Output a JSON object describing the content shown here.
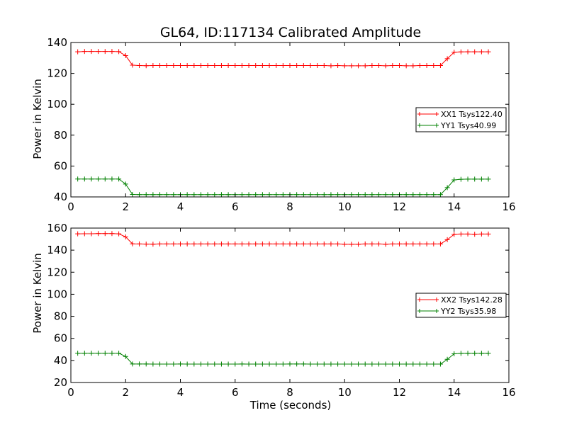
{
  "chart_data": [
    {
      "type": "line",
      "title": "GL64, ID:117134 Calibrated Amplitude",
      "xlabel": "",
      "ylabel": "Power in Kelvin",
      "xlim": [
        0,
        16
      ],
      "ylim": [
        40,
        140
      ],
      "xticks": [
        0,
        2,
        4,
        6,
        8,
        10,
        12,
        14,
        16
      ],
      "yticks": [
        40,
        60,
        80,
        100,
        120,
        140
      ],
      "legend_position": "right",
      "series": [
        {
          "name": "XX1 Tsys122.40",
          "color": "#ff0000",
          "x": [
            0.25,
            0.5,
            0.75,
            1.0,
            1.25,
            1.5,
            1.75,
            2.0,
            2.25,
            2.5,
            2.75,
            3.0,
            3.25,
            3.5,
            3.75,
            4.0,
            4.25,
            4.5,
            4.75,
            5.0,
            5.25,
            5.5,
            5.75,
            6.0,
            6.25,
            6.5,
            6.75,
            7.0,
            7.25,
            7.5,
            7.75,
            8.0,
            8.25,
            8.5,
            8.75,
            9.0,
            9.25,
            9.5,
            9.75,
            10.0,
            10.25,
            10.5,
            10.75,
            11.0,
            11.25,
            11.5,
            11.75,
            12.0,
            12.25,
            12.5,
            12.75,
            13.0,
            13.25,
            13.5,
            13.75,
            14.0,
            14.25,
            14.5,
            14.75,
            15.0,
            15.25
          ],
          "y": [
            134,
            134.2,
            134.2,
            134.2,
            134.2,
            134.2,
            134.1,
            131.5,
            125.3,
            125.1,
            125.0,
            125.1,
            125.1,
            125.1,
            125.1,
            125.1,
            125.1,
            125.1,
            125.1,
            125.1,
            125.1,
            125.1,
            125.1,
            125.1,
            125.1,
            125.1,
            125.1,
            125.1,
            125.1,
            125.1,
            125.1,
            125.1,
            125.1,
            125.1,
            125.1,
            125.1,
            125.1,
            124.9,
            125.1,
            124.9,
            124.9,
            124.9,
            124.9,
            125.1,
            125.1,
            124.9,
            125.1,
            125.1,
            124.9,
            124.9,
            125.1,
            125.1,
            125.1,
            125.1,
            129.5,
            133.7,
            133.9,
            134.0,
            134.0,
            134.0,
            134.0
          ]
        },
        {
          "name": "YY1 Tsys40.99",
          "color": "#008000",
          "x": [
            0.25,
            0.5,
            0.75,
            1.0,
            1.25,
            1.5,
            1.75,
            2.0,
            2.25,
            2.5,
            2.75,
            3.0,
            3.25,
            3.5,
            3.75,
            4.0,
            4.25,
            4.5,
            4.75,
            5.0,
            5.25,
            5.5,
            5.75,
            6.0,
            6.25,
            6.5,
            6.75,
            7.0,
            7.25,
            7.5,
            7.75,
            8.0,
            8.25,
            8.5,
            8.75,
            9.0,
            9.25,
            9.5,
            9.75,
            10.0,
            10.25,
            10.5,
            10.75,
            11.0,
            11.25,
            11.5,
            11.75,
            12.0,
            12.25,
            12.5,
            12.75,
            13.0,
            13.25,
            13.5,
            13.75,
            14.0,
            14.25,
            14.5,
            14.75,
            15.0,
            15.25
          ],
          "y": [
            51.6,
            51.6,
            51.6,
            51.6,
            51.6,
            51.6,
            51.6,
            48.3,
            41.6,
            41.5,
            41.5,
            41.5,
            41.5,
            41.5,
            41.5,
            41.5,
            41.5,
            41.5,
            41.5,
            41.5,
            41.5,
            41.5,
            41.5,
            41.5,
            41.5,
            41.5,
            41.5,
            41.5,
            41.5,
            41.5,
            41.5,
            41.5,
            41.5,
            41.5,
            41.5,
            41.5,
            41.5,
            41.5,
            41.5,
            41.5,
            41.5,
            41.5,
            41.5,
            41.5,
            41.5,
            41.5,
            41.5,
            41.5,
            41.5,
            41.5,
            41.5,
            41.5,
            41.5,
            41.5,
            46.0,
            51.0,
            51.4,
            51.5,
            51.5,
            51.5,
            51.5
          ]
        }
      ]
    },
    {
      "type": "line",
      "title": "",
      "xlabel": "Time (seconds)",
      "ylabel": "Power in Kelvin",
      "xlim": [
        0,
        16
      ],
      "ylim": [
        20,
        160
      ],
      "xticks": [
        0,
        2,
        4,
        6,
        8,
        10,
        12,
        14,
        16
      ],
      "yticks": [
        20,
        40,
        60,
        80,
        100,
        120,
        140,
        160
      ],
      "legend_position": "right",
      "series": [
        {
          "name": "XX2 Tsys142.28",
          "color": "#ff0000",
          "x": [
            0.25,
            0.5,
            0.75,
            1.0,
            1.25,
            1.5,
            1.75,
            2.0,
            2.25,
            2.5,
            2.75,
            3.0,
            3.25,
            3.5,
            3.75,
            4.0,
            4.25,
            4.5,
            4.75,
            5.0,
            5.25,
            5.5,
            5.75,
            6.0,
            6.25,
            6.5,
            6.75,
            7.0,
            7.25,
            7.5,
            7.75,
            8.0,
            8.25,
            8.5,
            8.75,
            9.0,
            9.25,
            9.5,
            9.75,
            10.0,
            10.25,
            10.5,
            10.75,
            11.0,
            11.25,
            11.5,
            11.75,
            12.0,
            12.25,
            12.5,
            12.75,
            13.0,
            13.25,
            13.5,
            13.75,
            14.0,
            14.25,
            14.5,
            14.75,
            15.0,
            15.25
          ],
          "y": [
            154.8,
            154.9,
            154.9,
            155.0,
            155.0,
            155.0,
            154.8,
            152.0,
            145.7,
            145.6,
            145.5,
            145.4,
            145.6,
            145.6,
            145.6,
            145.6,
            145.6,
            145.6,
            145.6,
            145.6,
            145.6,
            145.6,
            145.6,
            145.6,
            145.6,
            145.6,
            145.6,
            145.6,
            145.6,
            145.6,
            145.6,
            145.6,
            145.6,
            145.6,
            145.6,
            145.6,
            145.6,
            145.6,
            145.6,
            145.3,
            145.3,
            145.3,
            145.6,
            145.6,
            145.6,
            145.3,
            145.6,
            145.6,
            145.6,
            145.6,
            145.6,
            145.6,
            145.6,
            145.6,
            149.5,
            154.3,
            154.6,
            154.6,
            154.4,
            154.6,
            154.6
          ]
        },
        {
          "name": "YY2 Tsys35.98",
          "color": "#008000",
          "x": [
            0.25,
            0.5,
            0.75,
            1.0,
            1.25,
            1.5,
            1.75,
            2.0,
            2.25,
            2.5,
            2.75,
            3.0,
            3.25,
            3.5,
            3.75,
            4.0,
            4.25,
            4.5,
            4.75,
            5.0,
            5.25,
            5.5,
            5.75,
            6.0,
            6.25,
            6.5,
            6.75,
            7.0,
            7.25,
            7.5,
            7.75,
            8.0,
            8.25,
            8.5,
            8.75,
            9.0,
            9.25,
            9.5,
            9.75,
            10.0,
            10.25,
            10.5,
            10.75,
            11.0,
            11.25,
            11.5,
            11.75,
            12.0,
            12.25,
            12.5,
            12.75,
            13.0,
            13.25,
            13.5,
            13.75,
            14.0,
            14.25,
            14.5,
            14.75,
            15.0,
            15.25
          ],
          "y": [
            46.6,
            46.6,
            46.6,
            46.6,
            46.6,
            46.6,
            46.6,
            43.6,
            36.8,
            36.8,
            36.8,
            36.7,
            36.7,
            36.7,
            36.7,
            36.8,
            36.7,
            36.7,
            36.7,
            36.7,
            36.7,
            36.7,
            36.7,
            36.7,
            36.8,
            36.7,
            36.7,
            36.7,
            36.7,
            36.7,
            36.7,
            36.8,
            36.8,
            36.8,
            36.7,
            36.7,
            36.7,
            36.7,
            36.7,
            36.7,
            36.7,
            36.7,
            36.7,
            36.7,
            36.7,
            36.7,
            36.7,
            36.7,
            36.7,
            36.7,
            36.7,
            36.7,
            36.7,
            36.7,
            41.0,
            46.0,
            46.4,
            46.5,
            46.5,
            46.5,
            46.5
          ]
        }
      ]
    }
  ]
}
